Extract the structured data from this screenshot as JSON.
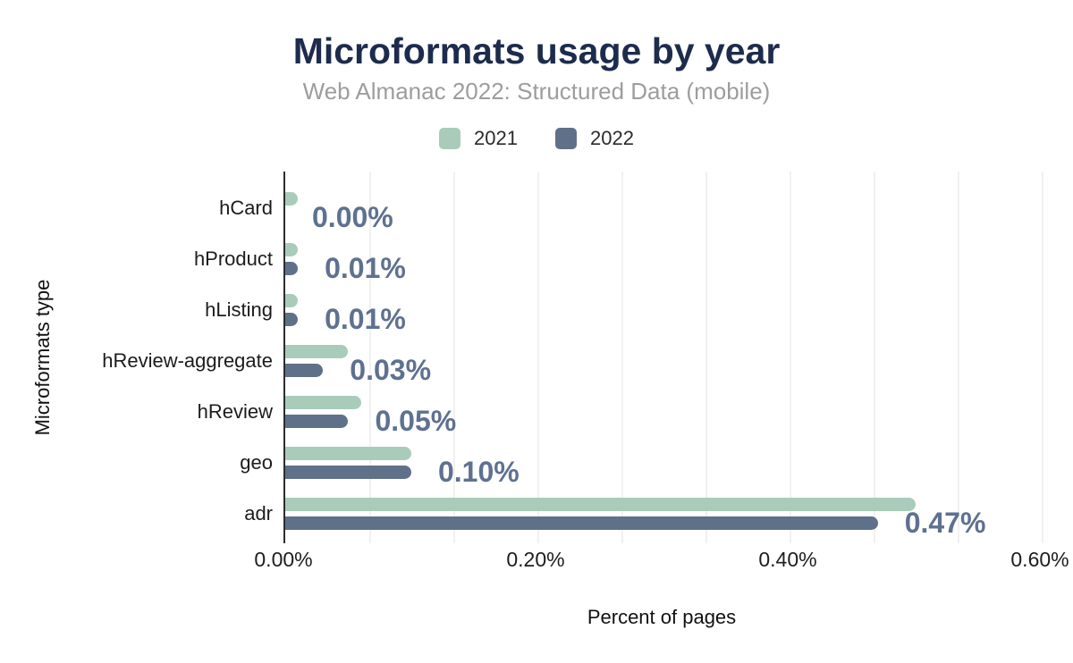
{
  "chart_data": {
    "type": "bar",
    "orientation": "horizontal",
    "title": "Microformats usage by year",
    "subtitle": "Web Almanac 2022: Structured Data (mobile)",
    "xlabel": "Percent of pages",
    "ylabel": "Microformats type",
    "xlim": [
      0,
      0.6
    ],
    "x_unit": "percent",
    "grid": true,
    "minor_gridlines_per_major": 2,
    "legend_position": "top",
    "x_ticks": [
      {
        "value": 0.0,
        "label": "0.00%"
      },
      {
        "value": 0.2,
        "label": "0.20%"
      },
      {
        "value": 0.4,
        "label": "0.40%"
      },
      {
        "value": 0.6,
        "label": "0.60%"
      }
    ],
    "categories": [
      "hCard",
      "hProduct",
      "hListing",
      "hReview-aggregate",
      "hReview",
      "geo",
      "adr"
    ],
    "series": [
      {
        "name": "2021",
        "color": "#a9ccba",
        "values": [
          0.01,
          0.01,
          0.01,
          0.05,
          0.06,
          0.1,
          0.5
        ]
      },
      {
        "name": "2022",
        "color": "#5f7189",
        "values": [
          0.0,
          0.01,
          0.01,
          0.03,
          0.05,
          0.1,
          0.47
        ]
      }
    ],
    "data_labels": {
      "labeled_series": "2022",
      "color": "#5e7190",
      "values": [
        "0.00%",
        "0.01%",
        "0.01%",
        "0.03%",
        "0.05%",
        "0.10%",
        "0.47%"
      ]
    }
  },
  "colors": {
    "title": "#1d2c4c",
    "subtitle": "#9d9d9d",
    "axis_line": "#2c2c2c",
    "gridline": "#f1f1f1",
    "tick_text": "#1d1d1d",
    "category_text": "#1c1c1c"
  }
}
